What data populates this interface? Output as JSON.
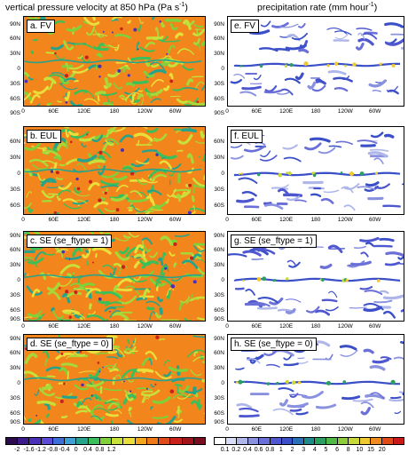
{
  "titles": {
    "left": "vertical pressure velocity at 850 hPa (Pa s",
    "left_sup": "-1",
    "left_end": ")",
    "right": "precipitation rate (mm hour",
    "right_sup": "-1",
    "right_end": ")"
  },
  "panels": [
    {
      "label": "a. FV"
    },
    {
      "label": "b. EUL"
    },
    {
      "label": "c. SE (se_ftype = 1)"
    },
    {
      "label": "d. SE (se_ftype = 0)"
    },
    {
      "label": "e. FV"
    },
    {
      "label": "f. EUL"
    },
    {
      "label": "g. SE (se_ftype = 1)"
    },
    {
      "label": "h. SE (se_ftype = 0)"
    }
  ],
  "axes": {
    "lat_full": [
      "90N",
      "60N",
      "30N",
      "0",
      "30S",
      "60S",
      "90S"
    ],
    "lat_short": [
      "60N",
      "30N",
      "0",
      "30S",
      "60S"
    ],
    "lon": [
      "0",
      "60E",
      "120E",
      "180",
      "120W",
      "60W"
    ]
  },
  "omega_colorbar": {
    "labels": [
      "-2",
      "-1.6",
      "-1.2",
      "-0.8",
      "-0.4",
      "0",
      "0.4",
      "0.8",
      "1.2"
    ],
    "colors": [
      "#2d0a4e",
      "#3b1a8a",
      "#4a2fb8",
      "#5a4ad6",
      "#3e6fd9",
      "#3f9fd4",
      "#27a38b",
      "#3bbf5a",
      "#7fd13b",
      "#c8e03a",
      "#eadf3a",
      "#f4a51c",
      "#f07a1a",
      "#e04a1a",
      "#c8201a",
      "#a0141a",
      "#7a0e20"
    ]
  },
  "precip_colorbar": {
    "labels": [
      "0.1",
      "0.2",
      "0.4",
      "0.6",
      "0.8",
      "1",
      "2",
      "3",
      "4",
      "5",
      "6",
      "8",
      "10",
      "15",
      "20"
    ],
    "colors": [
      "#ffffff",
      "#d8dcf4",
      "#aeb6ea",
      "#8a92e0",
      "#6a70d8",
      "#4f57d0",
      "#3a4fc8",
      "#2a6fb8",
      "#1f8a8a",
      "#2aa060",
      "#4fb848",
      "#8ccc3a",
      "#c8d83a",
      "#f0c830",
      "#f08a20",
      "#e04a1a",
      "#c81a1a"
    ]
  },
  "chart_data": {
    "type": "heatmap",
    "panels": [
      {
        "id": "a",
        "field": "vertical pressure velocity at 850 hPa",
        "model": "FV"
      },
      {
        "id": "b",
        "field": "vertical pressure velocity at 850 hPa",
        "model": "EUL"
      },
      {
        "id": "c",
        "field": "vertical pressure velocity at 850 hPa",
        "model": "SE (se_ftype = 1)"
      },
      {
        "id": "d",
        "field": "vertical pressure velocity at 850 hPa",
        "model": "SE (se_ftype = 0)"
      },
      {
        "id": "e",
        "field": "precipitation rate",
        "model": "FV"
      },
      {
        "id": "f",
        "field": "precipitation rate",
        "model": "EUL"
      },
      {
        "id": "g",
        "field": "precipitation rate",
        "model": "SE (se_ftype = 1)"
      },
      {
        "id": "h",
        "field": "precipitation rate",
        "model": "SE (se_ftype = 0)"
      }
    ],
    "omega_levels": [
      -2,
      -1.6,
      -1.2,
      -0.8,
      -0.4,
      0,
      0.4,
      0.8,
      1.2
    ],
    "precip_levels": [
      0.1,
      0.2,
      0.4,
      0.6,
      0.8,
      1,
      2,
      3,
      4,
      5,
      6,
      8,
      10,
      15,
      20
    ],
    "xlim": [
      0,
      360
    ],
    "ylim": [
      -90,
      90
    ]
  }
}
